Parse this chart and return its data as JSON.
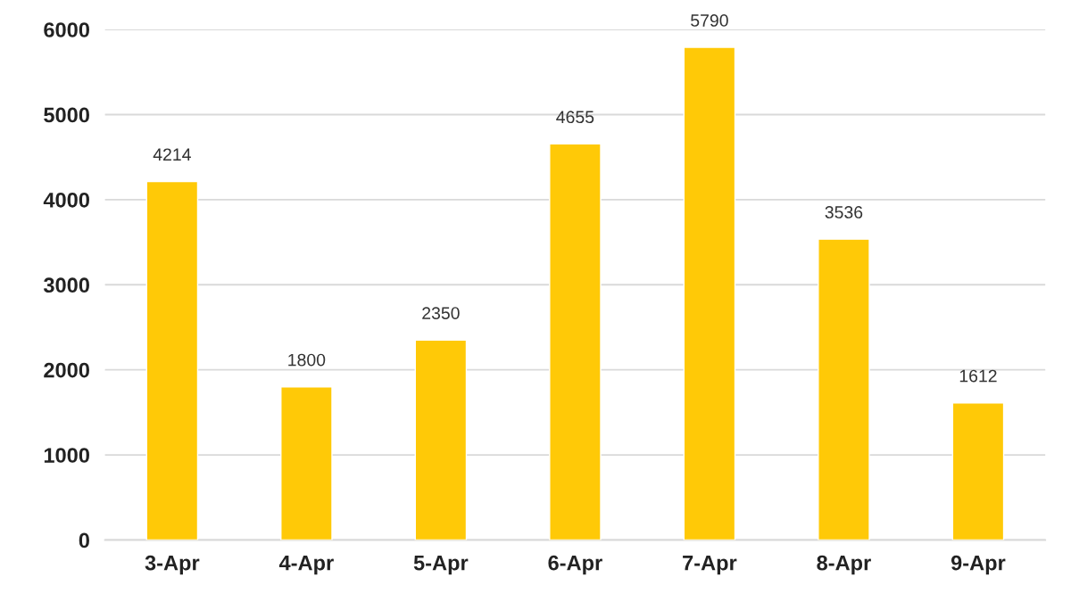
{
  "chart_data": {
    "type": "bar",
    "categories": [
      "3-Apr",
      "4-Apr",
      "5-Apr",
      "6-Apr",
      "7-Apr",
      "8-Apr",
      "9-Apr"
    ],
    "values": [
      4214,
      1800,
      2350,
      4655,
      5790,
      3536,
      1612
    ],
    "color": "#ffc907",
    "ylim": [
      0,
      6000
    ],
    "yticks": [
      0,
      1000,
      2000,
      3000,
      4000,
      5000,
      6000
    ],
    "grid": "y",
    "data_labels": true
  }
}
